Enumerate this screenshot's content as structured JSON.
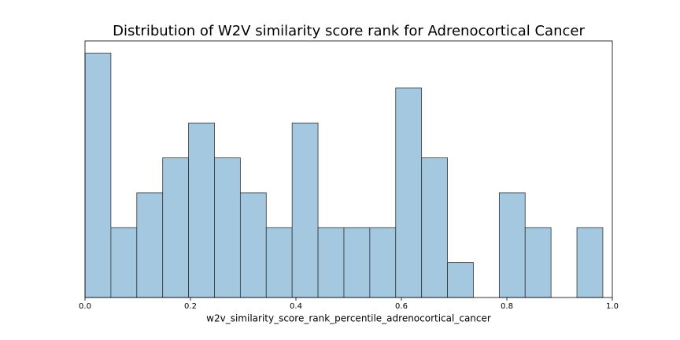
{
  "chart_data": {
    "type": "histogram",
    "title": "Distribution of W2V similarity score rank for Adrenocortical Cancer",
    "x_label": "w2v_similarity_score_rank_percentile_adrenocortical_cancer",
    "bins": [
      0,
      0.0491,
      0.0982,
      0.1473,
      0.1964,
      0.2455,
      0.2946,
      0.3437,
      0.3928,
      0.4419,
      0.491,
      0.5401,
      0.5892,
      0.6383,
      0.6874,
      0.7365,
      0.7856,
      0.8347,
      0.8838,
      0.9329,
      0.982
    ],
    "values": [
      7,
      2,
      3,
      4,
      5,
      4,
      3,
      2,
      5,
      2,
      2,
      2,
      6,
      4,
      1,
      0,
      3,
      2,
      0,
      2
    ],
    "color": "#a5c8e1",
    "edge_color": "#333333",
    "xlim": [
      0,
      1
    ],
    "xticks": [
      {
        "value": 0,
        "label": "0.0"
      },
      0.2,
      0.4,
      0.6,
      0.8,
      {
        "value": 1,
        "label": "1.0"
      }
    ],
    "ylim": [
      0,
      7.35
    ],
    "grid": false
  }
}
